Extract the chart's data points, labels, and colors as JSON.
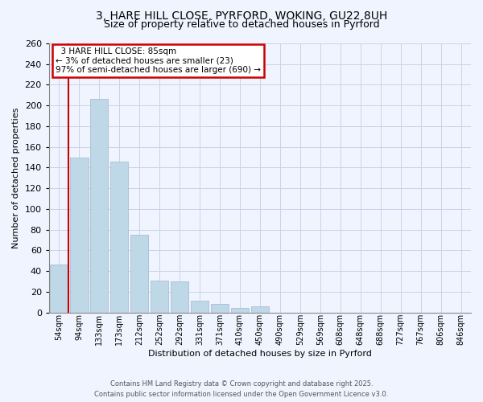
{
  "title_line1": "3, HARE HILL CLOSE, PYRFORD, WOKING, GU22 8UH",
  "title_line2": "Size of property relative to detached houses in Pyrford",
  "xlabel": "Distribution of detached houses by size in Pyrford",
  "ylabel": "Number of detached properties",
  "bar_labels": [
    "54sqm",
    "94sqm",
    "133sqm",
    "173sqm",
    "212sqm",
    "252sqm",
    "292sqm",
    "331sqm",
    "371sqm",
    "410sqm",
    "450sqm",
    "490sqm",
    "529sqm",
    "569sqm",
    "608sqm",
    "648sqm",
    "688sqm",
    "727sqm",
    "767sqm",
    "806sqm",
    "846sqm"
  ],
  "bar_values": [
    46,
    150,
    206,
    146,
    75,
    31,
    30,
    11,
    8,
    4,
    6,
    0,
    0,
    0,
    0,
    0,
    0,
    0,
    0,
    0,
    0
  ],
  "bar_color": "#bed8e8",
  "ylim": [
    0,
    260
  ],
  "yticks": [
    0,
    20,
    40,
    60,
    80,
    100,
    120,
    140,
    160,
    180,
    200,
    220,
    240,
    260
  ],
  "annotation_title": "3 HARE HILL CLOSE: 85sqm",
  "annotation_line1": "← 3% of detached houses are smaller (23)",
  "annotation_line2": "97% of semi-detached houses are larger (690) →",
  "annotation_box_color": "#ffffff",
  "annotation_border_color": "#cc0000",
  "red_line_color": "#cc0000",
  "footer_line1": "Contains HM Land Registry data © Crown copyright and database right 2025.",
  "footer_line2": "Contains public sector information licensed under the Open Government Licence v3.0.",
  "bg_color": "#f0f4ff",
  "grid_color": "#c8d4e8"
}
